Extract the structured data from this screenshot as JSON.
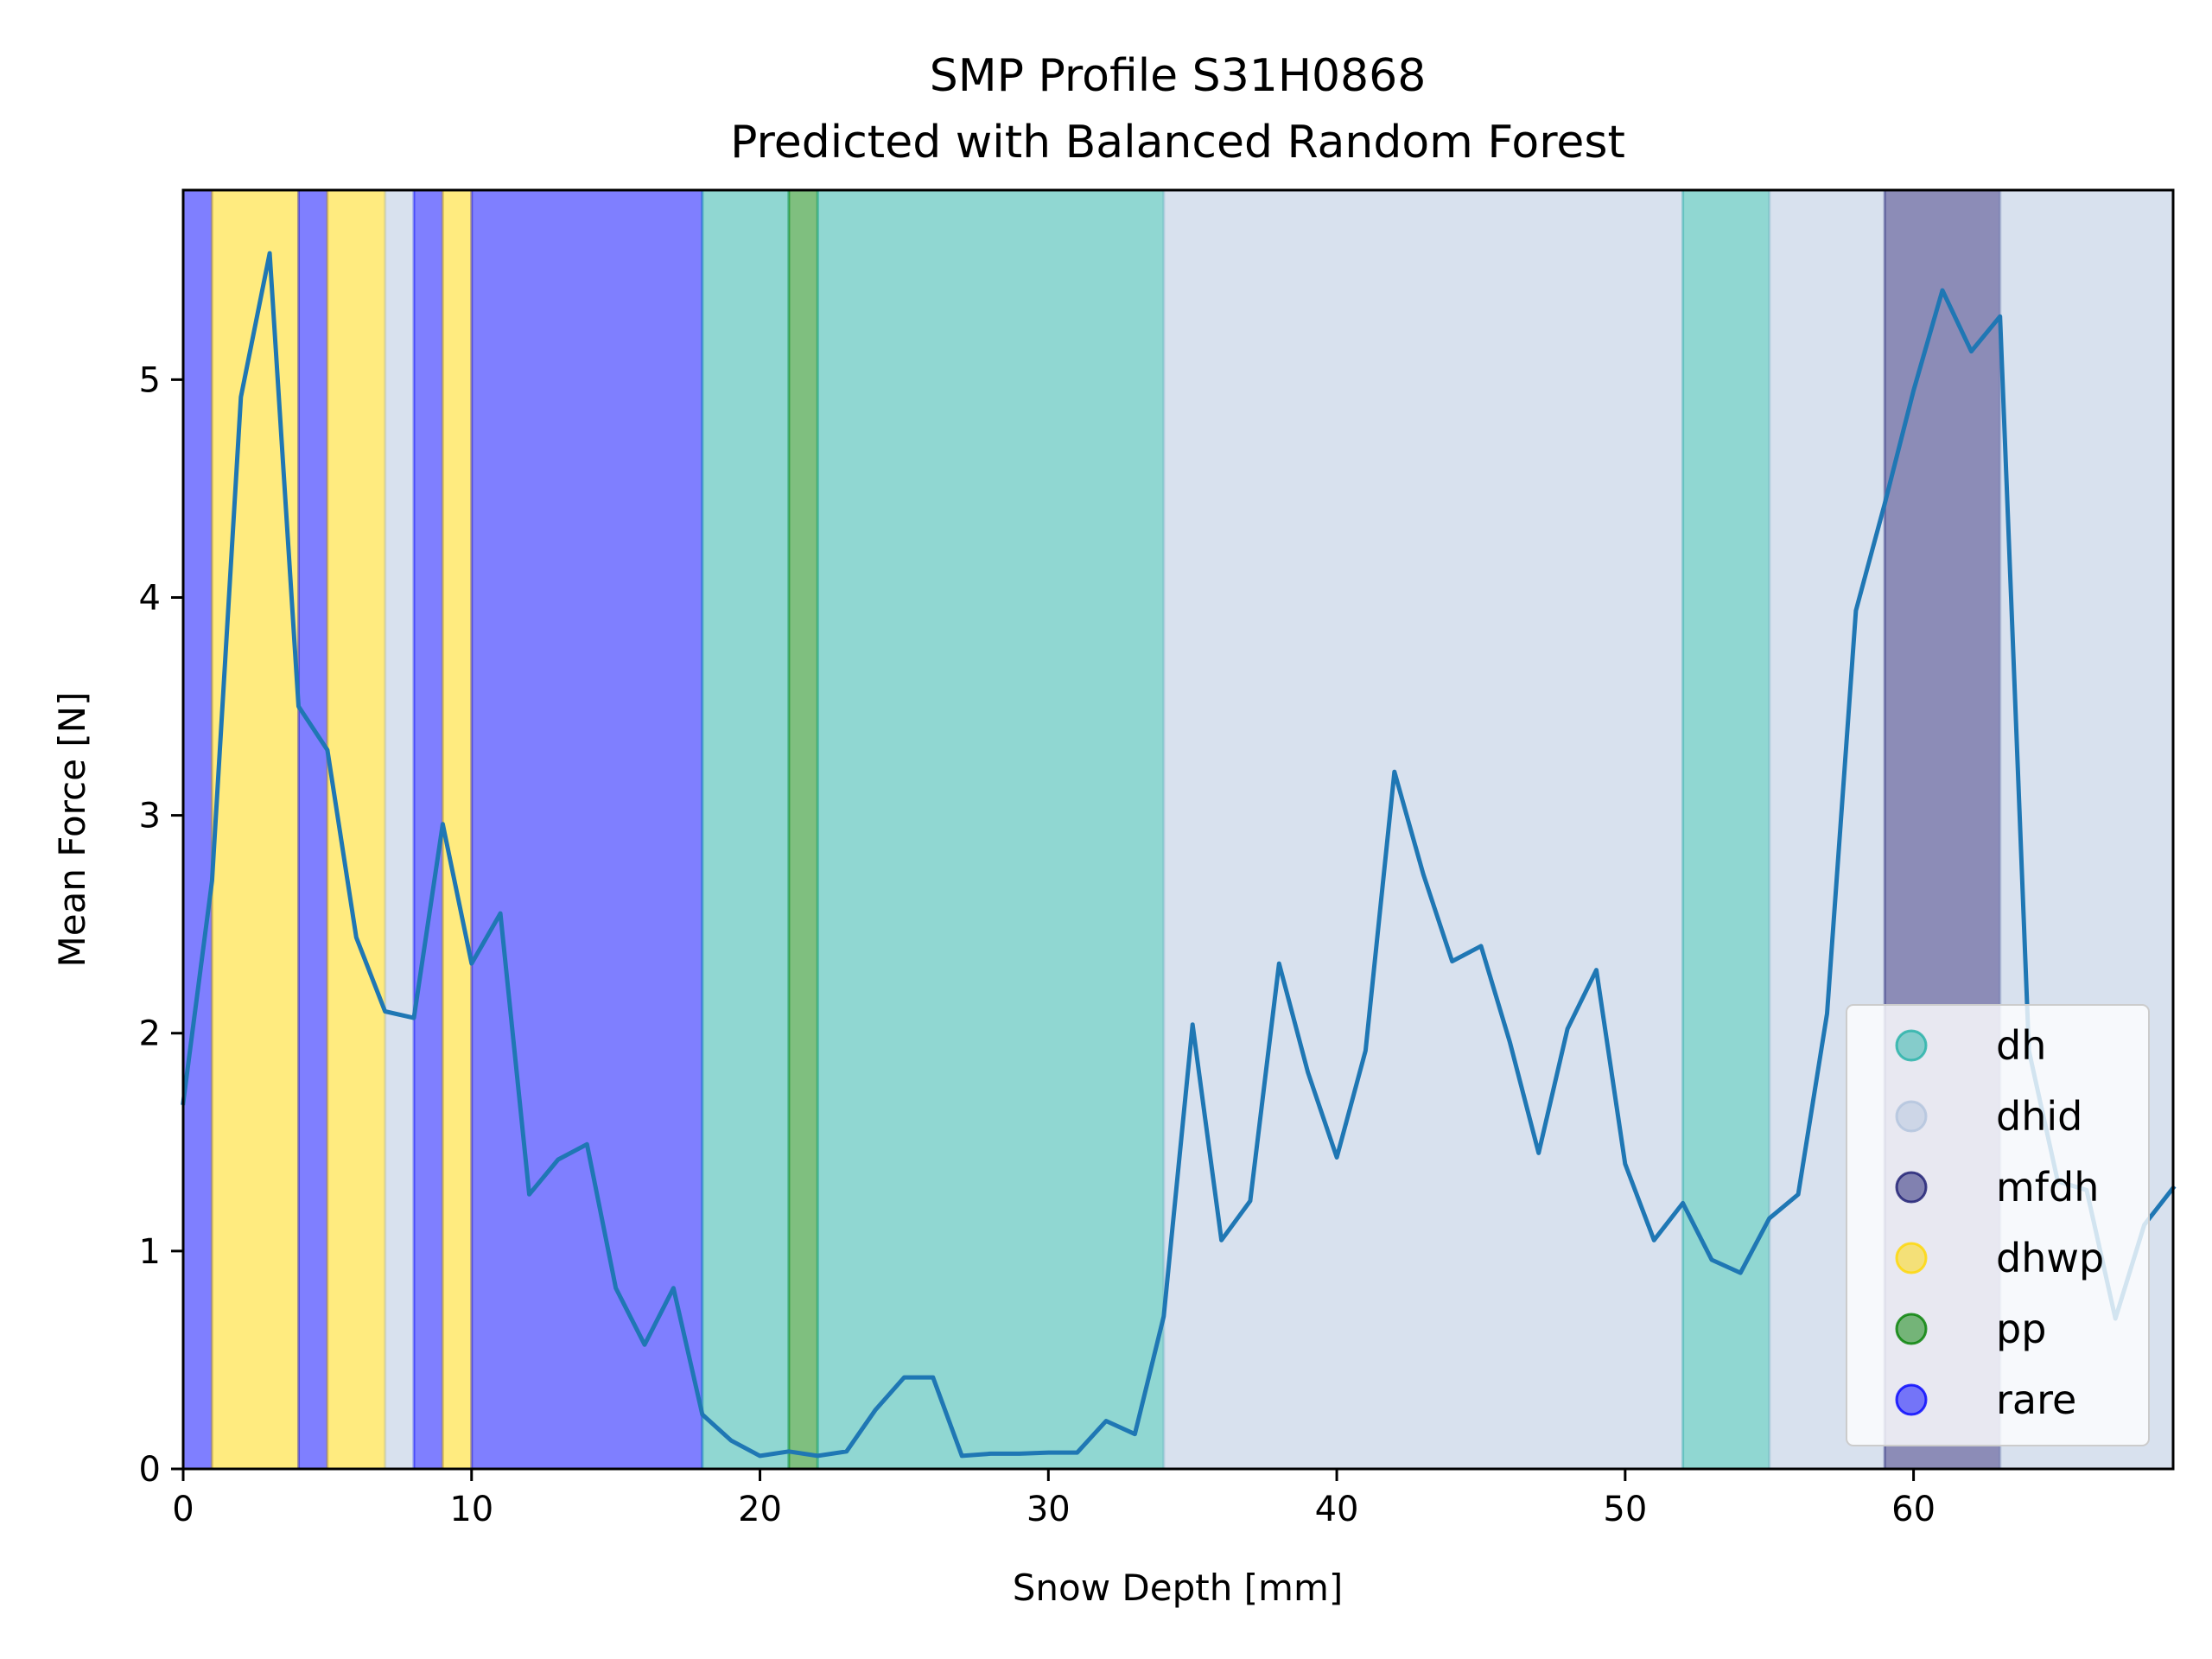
{
  "chart_data": {
    "type": "line",
    "title": "SMP Profile S31H0868",
    "subtitle": "Predicted with Balanced Random Forest",
    "xlabel": "Snow Depth [mm]",
    "ylabel": "Mean Force [N]",
    "xlim": [
      0,
      69
    ],
    "ylim": [
      0,
      5.87
    ],
    "xticks": [
      0,
      10,
      20,
      30,
      40,
      50,
      60
    ],
    "yticks": [
      0,
      1,
      2,
      3,
      4,
      5
    ],
    "grid": false,
    "legend_position": "lower right",
    "series": [
      {
        "color": "#1f77b4",
        "x": [
          0,
          1,
          2,
          3,
          4,
          5,
          6,
          7,
          8,
          9,
          10,
          11,
          12,
          13,
          14,
          15,
          16,
          17,
          18,
          19,
          20,
          21,
          22,
          23,
          24,
          25,
          26,
          27,
          28,
          29,
          30,
          31,
          32,
          33,
          34,
          35,
          36,
          37,
          38,
          39,
          40,
          41,
          42,
          43,
          44,
          45,
          46,
          47,
          48,
          49,
          50,
          51,
          52,
          53,
          54,
          55,
          56,
          57,
          58,
          59,
          60,
          61,
          62,
          63,
          64,
          65,
          66,
          67,
          68,
          69
        ],
        "values": [
          1.68,
          2.7,
          4.92,
          5.58,
          3.5,
          3.3,
          2.44,
          2.1,
          2.07,
          2.96,
          2.32,
          2.55,
          1.26,
          1.42,
          1.49,
          0.83,
          0.57,
          0.83,
          0.25,
          0.13,
          0.06,
          0.08,
          0.06,
          0.08,
          0.27,
          0.42,
          0.42,
          0.06,
          0.07,
          0.07,
          0.075,
          0.075,
          0.22,
          0.16,
          0.7,
          2.04,
          1.05,
          1.23,
          2.32,
          1.82,
          1.43,
          1.92,
          3.2,
          2.73,
          2.33,
          2.4,
          1.96,
          1.45,
          2.02,
          2.29,
          1.4,
          1.05,
          1.22,
          0.96,
          0.9,
          1.15,
          1.26,
          2.09,
          3.94,
          4.43,
          4.95,
          5.41,
          5.13,
          5.29,
          1.92,
          1.32,
          1.28,
          0.69,
          1.12,
          1.29
        ]
      }
    ],
    "bands": [
      {
        "x0": 0,
        "x1": 1,
        "cls": "rare"
      },
      {
        "x0": 1,
        "x1": 4,
        "cls": "dhwp"
      },
      {
        "x0": 4,
        "x1": 5,
        "cls": "rare"
      },
      {
        "x0": 5,
        "x1": 7,
        "cls": "dhwp"
      },
      {
        "x0": 7,
        "x1": 8,
        "cls": "dhid"
      },
      {
        "x0": 8,
        "x1": 9,
        "cls": "rare"
      },
      {
        "x0": 9,
        "x1": 10,
        "cls": "dhwp"
      },
      {
        "x0": 10,
        "x1": 18,
        "cls": "rare"
      },
      {
        "x0": 18,
        "x1": 21,
        "cls": "dh"
      },
      {
        "x0": 21,
        "x1": 22,
        "cls": "pp"
      },
      {
        "x0": 22,
        "x1": 34,
        "cls": "dh"
      },
      {
        "x0": 34,
        "x1": 52,
        "cls": "dhid"
      },
      {
        "x0": 52,
        "x1": 55,
        "cls": "dh"
      },
      {
        "x0": 55,
        "x1": 59,
        "cls": "dhid"
      },
      {
        "x0": 59,
        "x1": 63,
        "cls": "mfdh"
      },
      {
        "x0": 63,
        "x1": 69,
        "cls": "dhid"
      }
    ],
    "legend": [
      {
        "label": "dh",
        "color": "#22b0a6"
      },
      {
        "label": "dhid",
        "color": "#b2c3dd"
      },
      {
        "label": "mfdh",
        "color": "#191970"
      },
      {
        "label": "dhwp",
        "color": "#ffd700"
      },
      {
        "label": "pp",
        "color": "#008000"
      },
      {
        "label": "rare",
        "color": "#0000ff"
      }
    ]
  }
}
